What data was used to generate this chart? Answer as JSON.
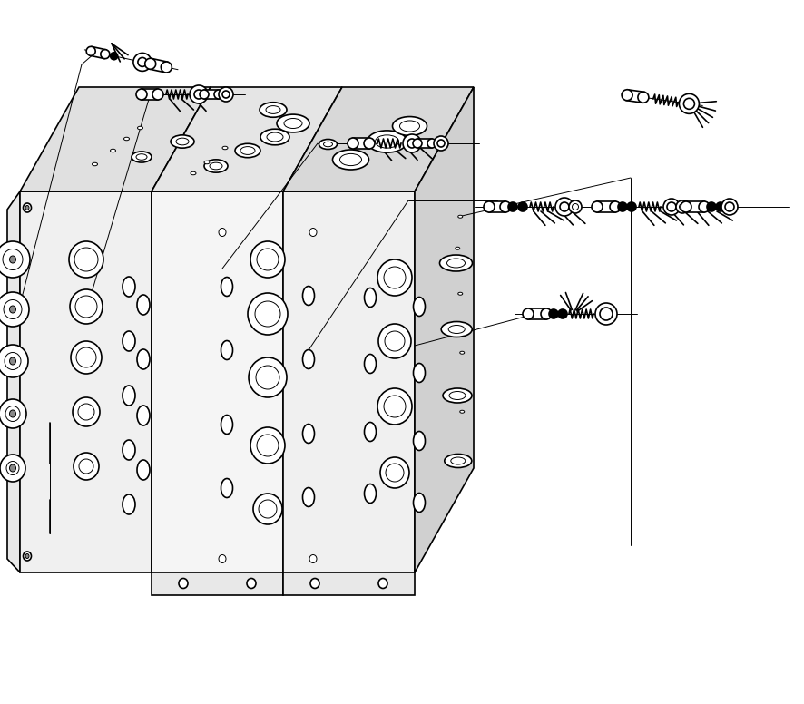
{
  "background_color": "#ffffff",
  "line_color": "#000000",
  "lw": 1.2,
  "tlw": 0.7,
  "fig_width": 8.87,
  "fig_height": 7.76
}
